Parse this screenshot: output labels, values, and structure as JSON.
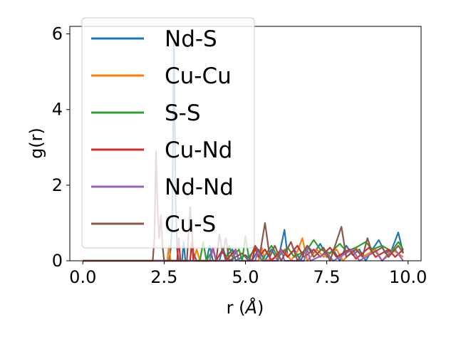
{
  "chart_data": {
    "type": "line",
    "title": "",
    "xlabel": "r (Å)",
    "xlabel_main": "r (",
    "xlabel_unit": "Å",
    "xlabel_close": ")",
    "ylabel": "g(r)",
    "xlim": [
      -0.4,
      10.4
    ],
    "ylim": [
      0,
      6.2
    ],
    "xticks": [
      0.0,
      2.5,
      5.0,
      7.5,
      10.0
    ],
    "xtick_labels": [
      "0.0",
      "2.5",
      "5.0",
      "7.5",
      "10.0"
    ],
    "yticks": [
      0,
      2,
      4,
      6
    ],
    "ytick_labels": [
      "0",
      "2",
      "4",
      "6"
    ],
    "grid": false,
    "legend_position": "upper-left",
    "series": [
      {
        "name": "Nd-S",
        "color": "#1f77b4",
        "points": [
          [
            0,
            0
          ],
          [
            2.65,
            0
          ],
          [
            2.7,
            0.3
          ],
          [
            2.75,
            1.0
          ],
          [
            2.8,
            5.85
          ],
          [
            2.85,
            1.6
          ],
          [
            2.9,
            0.3
          ],
          [
            2.95,
            0.0
          ],
          [
            3.05,
            0.0
          ],
          [
            3.1,
            0.5
          ],
          [
            3.15,
            0.0
          ],
          [
            3.8,
            0.0
          ],
          [
            3.9,
            0.4
          ],
          [
            4.0,
            0.0
          ],
          [
            4.2,
            0.0
          ],
          [
            4.3,
            0.35
          ],
          [
            4.4,
            0.1
          ],
          [
            4.6,
            0.3
          ],
          [
            4.7,
            0.0
          ],
          [
            5.0,
            0.15
          ],
          [
            5.2,
            0.0
          ],
          [
            5.4,
            0.3
          ],
          [
            5.6,
            0.0
          ],
          [
            5.8,
            0.3
          ],
          [
            6.0,
            0.0
          ],
          [
            6.2,
            0.82
          ],
          [
            6.3,
            0.1
          ],
          [
            6.5,
            0.3
          ],
          [
            6.7,
            0.0
          ],
          [
            6.9,
            0.4
          ],
          [
            7.1,
            0.2
          ],
          [
            7.3,
            0.45
          ],
          [
            7.5,
            0.1
          ],
          [
            7.7,
            0.3
          ],
          [
            7.9,
            0.0
          ],
          [
            8.1,
            0.4
          ],
          [
            8.3,
            0.15
          ],
          [
            8.5,
            0.3
          ],
          [
            8.7,
            0.0
          ],
          [
            8.9,
            0.3
          ],
          [
            9.1,
            0.55
          ],
          [
            9.3,
            0.2
          ],
          [
            9.5,
            0.3
          ],
          [
            9.7,
            0.75
          ],
          [
            9.85,
            0.2
          ]
        ]
      },
      {
        "name": "Cu-Cu",
        "color": "#ff7f0e",
        "points": [
          [
            0,
            0
          ],
          [
            2.6,
            0
          ],
          [
            2.65,
            0.4
          ],
          [
            2.7,
            0.0
          ],
          [
            3.4,
            0.0
          ],
          [
            3.5,
            0.3
          ],
          [
            3.6,
            0.0
          ],
          [
            4.6,
            0.0
          ],
          [
            4.7,
            0.3
          ],
          [
            4.8,
            0.0
          ],
          [
            5.4,
            0.0
          ],
          [
            5.5,
            0.35
          ],
          [
            5.6,
            0.0
          ],
          [
            6.0,
            0.1
          ],
          [
            6.2,
            0.3
          ],
          [
            6.4,
            0.0
          ],
          [
            6.6,
            0.25
          ],
          [
            6.75,
            0.6
          ],
          [
            6.9,
            0.0
          ],
          [
            7.2,
            0.3
          ],
          [
            7.4,
            0.1
          ],
          [
            7.8,
            0.3
          ],
          [
            8.0,
            0.0
          ],
          [
            8.4,
            0.35
          ],
          [
            8.6,
            0.1
          ],
          [
            9.0,
            0.3
          ],
          [
            9.2,
            0.0
          ],
          [
            9.5,
            0.3
          ],
          [
            9.85,
            0.1
          ]
        ]
      },
      {
        "name": "S-S",
        "color": "#2ca02c",
        "points": [
          [
            0,
            0
          ],
          [
            3.6,
            0
          ],
          [
            3.7,
            0.5
          ],
          [
            3.8,
            0.0
          ],
          [
            4.0,
            0.3
          ],
          [
            4.1,
            0.0
          ],
          [
            4.4,
            0.0
          ],
          [
            4.5,
            0.4
          ],
          [
            4.6,
            0.1
          ],
          [
            4.8,
            0.3
          ],
          [
            4.9,
            0.0
          ],
          [
            5.0,
            0.65
          ],
          [
            5.1,
            0.1
          ],
          [
            5.3,
            0.3
          ],
          [
            5.5,
            0.0
          ],
          [
            5.8,
            0.4
          ],
          [
            6.0,
            0.1
          ],
          [
            6.3,
            0.35
          ],
          [
            6.5,
            0.1
          ],
          [
            6.9,
            0.3
          ],
          [
            7.1,
            0.55
          ],
          [
            7.3,
            0.3
          ],
          [
            7.6,
            0.2
          ],
          [
            7.9,
            0.45
          ],
          [
            8.1,
            0.25
          ],
          [
            8.4,
            0.35
          ],
          [
            8.7,
            0.5
          ],
          [
            8.9,
            0.3
          ],
          [
            9.2,
            0.4
          ],
          [
            9.5,
            0.25
          ],
          [
            9.7,
            0.5
          ],
          [
            9.85,
            0.3
          ]
        ]
      },
      {
        "name": "Cu-Nd",
        "color": "#d62728",
        "points": [
          [
            0,
            0
          ],
          [
            2.9,
            0
          ],
          [
            2.95,
            0.6
          ],
          [
            3.0,
            0.0
          ],
          [
            3.3,
            0.0
          ],
          [
            3.35,
            0.5
          ],
          [
            3.4,
            0.0
          ],
          [
            3.9,
            0.0
          ],
          [
            4.0,
            0.35
          ],
          [
            4.1,
            0.0
          ],
          [
            4.3,
            0.3
          ],
          [
            4.4,
            0.0
          ],
          [
            4.7,
            0.3
          ],
          [
            4.8,
            0.0
          ],
          [
            5.2,
            0.0
          ],
          [
            5.3,
            0.35
          ],
          [
            5.4,
            0.1
          ],
          [
            5.6,
            0.3
          ],
          [
            5.8,
            0.0
          ],
          [
            6.1,
            0.3
          ],
          [
            6.3,
            0.1
          ],
          [
            6.6,
            0.4
          ],
          [
            6.8,
            0.1
          ],
          [
            7.1,
            0.3
          ],
          [
            7.3,
            0.1
          ],
          [
            7.6,
            0.35
          ],
          [
            7.8,
            0.1
          ],
          [
            8.2,
            0.3
          ],
          [
            8.4,
            0.05
          ],
          [
            8.8,
            0.35
          ],
          [
            9.0,
            0.1
          ],
          [
            9.4,
            0.3
          ],
          [
            9.6,
            0.1
          ],
          [
            9.85,
            0.3
          ]
        ]
      },
      {
        "name": "Nd-Nd",
        "color": "#9467bd",
        "points": [
          [
            0,
            0
          ],
          [
            3.9,
            0
          ],
          [
            4.0,
            0.3
          ],
          [
            4.1,
            0.0
          ],
          [
            4.6,
            0.0
          ],
          [
            4.7,
            0.3
          ],
          [
            4.8,
            0.0
          ],
          [
            5.3,
            0.0
          ],
          [
            5.4,
            0.3
          ],
          [
            5.5,
            0.0
          ],
          [
            6.0,
            0.0
          ],
          [
            6.1,
            0.3
          ],
          [
            6.2,
            0.0
          ],
          [
            6.8,
            0.0
          ],
          [
            6.9,
            0.3
          ],
          [
            7.0,
            0.0
          ],
          [
            7.5,
            0.2
          ],
          [
            7.7,
            0.0
          ],
          [
            8.3,
            0.3
          ],
          [
            8.5,
            0.0
          ],
          [
            9.0,
            0.25
          ],
          [
            9.2,
            0.0
          ],
          [
            9.6,
            0.3
          ],
          [
            9.85,
            0.0
          ]
        ]
      },
      {
        "name": "Cu-S",
        "color": "#8c564b",
        "points": [
          [
            0,
            0
          ],
          [
            2.15,
            0
          ],
          [
            2.2,
            0.6
          ],
          [
            2.25,
            2.9
          ],
          [
            2.3,
            1.3
          ],
          [
            2.35,
            0.6
          ],
          [
            2.4,
            1.2
          ],
          [
            2.45,
            0.4
          ],
          [
            2.5,
            0.0
          ],
          [
            3.2,
            0.0
          ],
          [
            3.3,
            1.42
          ],
          [
            3.4,
            0.2
          ],
          [
            3.5,
            0.0
          ],
          [
            4.1,
            0.0
          ],
          [
            4.2,
            0.7
          ],
          [
            4.3,
            0.2
          ],
          [
            4.4,
            0.6
          ],
          [
            4.5,
            0.0
          ],
          [
            4.9,
            0.2
          ],
          [
            5.1,
            0.0
          ],
          [
            5.3,
            0.4
          ],
          [
            5.45,
            0.2
          ],
          [
            5.6,
            1.0
          ],
          [
            5.75,
            0.1
          ],
          [
            5.9,
            0.4
          ],
          [
            6.1,
            0.0
          ],
          [
            6.4,
            0.5
          ],
          [
            6.6,
            0.0
          ],
          [
            6.9,
            0.4
          ],
          [
            7.1,
            0.1
          ],
          [
            7.4,
            0.35
          ],
          [
            7.6,
            0.0
          ],
          [
            7.95,
            0.9
          ],
          [
            8.1,
            0.1
          ],
          [
            8.4,
            0.3
          ],
          [
            8.6,
            0.1
          ],
          [
            8.75,
            0.6
          ],
          [
            8.9,
            0.2
          ],
          [
            9.2,
            0.35
          ],
          [
            9.4,
            0.1
          ],
          [
            9.7,
            0.4
          ],
          [
            9.85,
            0.2
          ]
        ]
      }
    ]
  }
}
